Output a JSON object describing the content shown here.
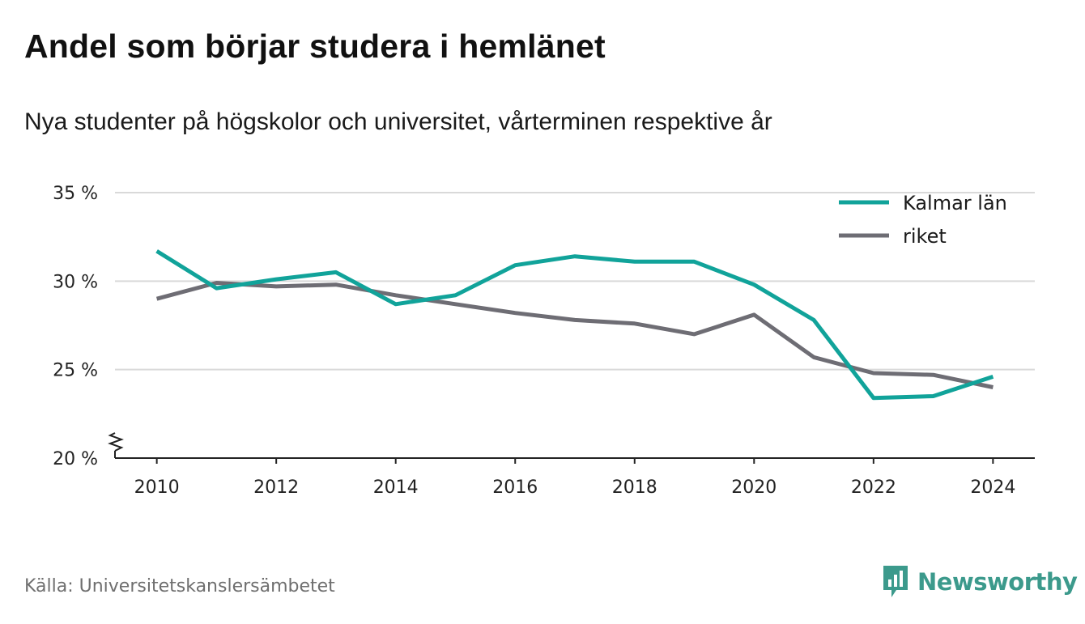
{
  "title": "Andel som börjar studera i hemlänet",
  "subtitle": "Nya studenter på högskolor och universitet, vårterminen respektive år",
  "source": "Källa: Universitetskanslersämbetet",
  "brand": "Newsworthy",
  "colors": {
    "kalmar": "#11a39a",
    "riket": "#6e6d74",
    "grid": "#d9d9d9",
    "axis": "#222222",
    "brand": "#3c9a8c"
  },
  "chart_data": {
    "type": "line",
    "x": [
      2010,
      2011,
      2012,
      2013,
      2014,
      2015,
      2016,
      2017,
      2018,
      2019,
      2020,
      2021,
      2022,
      2023,
      2024
    ],
    "series": [
      {
        "name": "Kalmar län",
        "values": [
          31.7,
          29.6,
          30.1,
          30.5,
          28.7,
          29.2,
          30.9,
          31.4,
          31.1,
          31.1,
          29.8,
          27.8,
          23.4,
          23.5,
          24.6
        ]
      },
      {
        "name": "riket",
        "values": [
          29.0,
          29.9,
          29.7,
          29.8,
          29.2,
          28.7,
          28.2,
          27.8,
          27.6,
          27.0,
          28.1,
          25.7,
          24.8,
          24.7,
          24.0
        ]
      }
    ],
    "y_ticks": [
      20,
      25,
      30,
      35
    ],
    "y_tick_labels": [
      "20 %",
      "25 %",
      "30 %",
      "35 %"
    ],
    "x_ticks": [
      2010,
      2012,
      2014,
      2016,
      2018,
      2020,
      2022,
      2024
    ],
    "x_tick_labels": [
      "2010",
      "2012",
      "2014",
      "2016",
      "2018",
      "2020",
      "2022",
      "2024"
    ],
    "ylim": [
      20,
      35
    ],
    "xlim": [
      2009.3,
      2024.7
    ],
    "y_axis_break": true,
    "grid": true,
    "legend_position": "top-right"
  }
}
